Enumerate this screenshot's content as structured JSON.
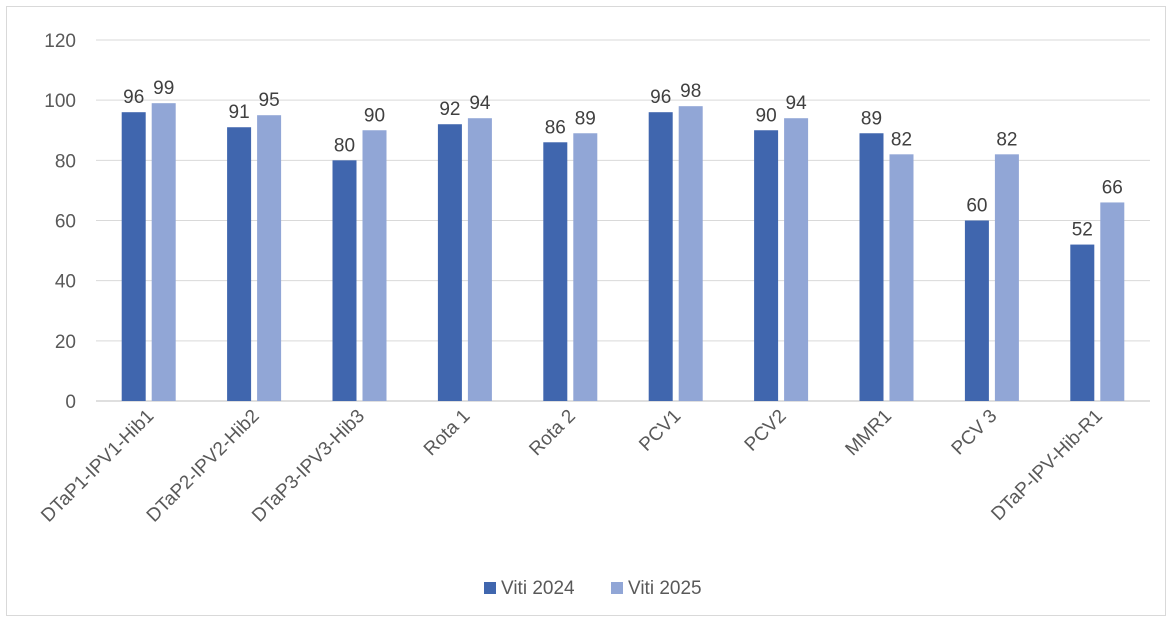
{
  "chart_data": {
    "type": "bar",
    "title": "",
    "xlabel": "",
    "ylabel": "",
    "ylim": [
      0,
      120
    ],
    "yticks": [
      0,
      20,
      40,
      60,
      80,
      100,
      120
    ],
    "grid": true,
    "legend_position": "bottom",
    "categories": [
      "DTaP1-IPV1-Hib1",
      "DTaP2-IPV2-Hib2",
      "DTaP3-IPV3-Hib3",
      "Rota 1",
      "Rota 2",
      "PCV1",
      "PCV2",
      "MMR1",
      "PCV 3",
      "DTaP-IPV-Hib-R1"
    ],
    "series": [
      {
        "name": "Viti 2024",
        "color": "#4066ae",
        "values": [
          96,
          91,
          80,
          92,
          86,
          96,
          90,
          89,
          60,
          52
        ]
      },
      {
        "name": "Viti 2025",
        "color": "#91a6d6",
        "values": [
          99,
          95,
          90,
          94,
          89,
          98,
          94,
          82,
          82,
          66
        ]
      }
    ]
  }
}
